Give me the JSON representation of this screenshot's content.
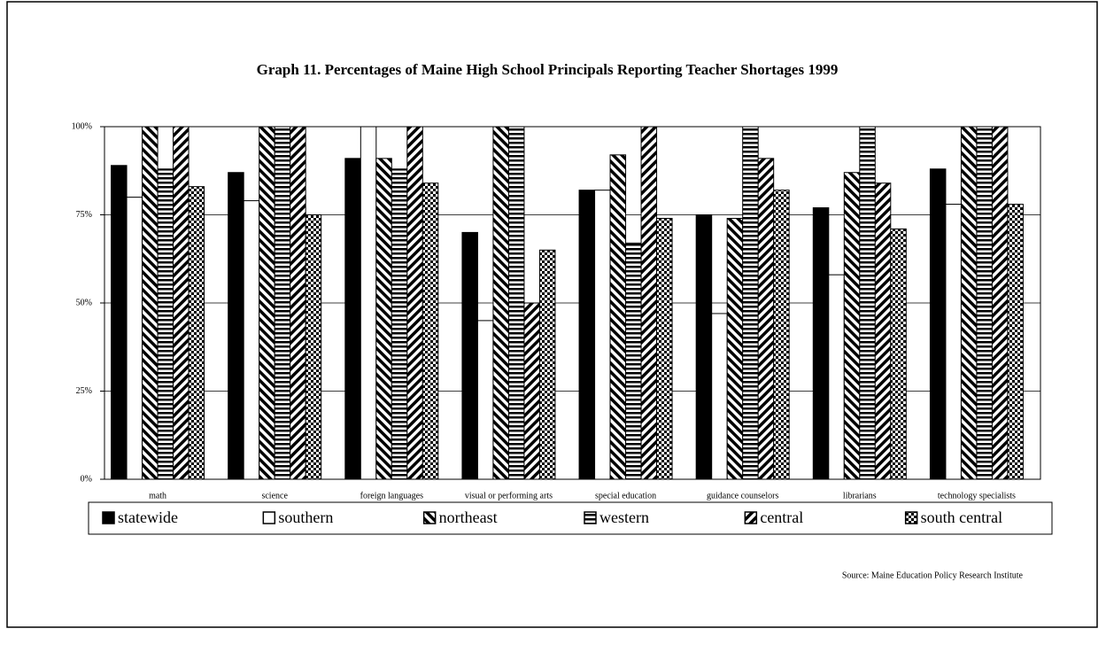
{
  "chart_data": {
    "type": "bar",
    "title": "Graph 11. Percentages of Maine High School Principals Reporting Teacher Shortages 1999",
    "source": "Source: Maine Education Policy Research Institute",
    "categories": [
      "math",
      "science",
      "foreign languages",
      "visual or performing arts",
      "special education",
      "guidance counselors",
      "librarians",
      "technology specialists"
    ],
    "series": [
      {
        "name": "statewide",
        "color": "#000000",
        "pattern": "solid",
        "values": [
          89,
          87,
          91,
          70,
          82,
          75,
          77,
          88
        ]
      },
      {
        "name": "southern",
        "color": "#ffffff",
        "pattern": "solid",
        "values": [
          80,
          79,
          100,
          45,
          82,
          47,
          58,
          78
        ]
      },
      {
        "name": "northeast",
        "color": "#000000",
        "pattern": "backslash",
        "values": [
          100,
          100,
          91,
          100,
          92,
          74,
          87,
          100
        ]
      },
      {
        "name": "western",
        "color": "#000000",
        "pattern": "horizontal",
        "values": [
          88,
          100,
          88,
          100,
          67,
          100,
          100,
          100
        ]
      },
      {
        "name": "central",
        "color": "#000000",
        "pattern": "slash",
        "values": [
          100,
          100,
          100,
          50,
          100,
          91,
          84,
          100
        ]
      },
      {
        "name": "south central",
        "color": "#000000",
        "pattern": "checker",
        "values": [
          83,
          75,
          84,
          65,
          74,
          82,
          71,
          78
        ]
      }
    ],
    "ylim": [
      0,
      100
    ],
    "yticks": [
      {
        "value": 0,
        "label": "0%"
      },
      {
        "value": 25,
        "label": "25%"
      },
      {
        "value": 50,
        "label": "50%"
      },
      {
        "value": 75,
        "label": "75%"
      },
      {
        "value": 100,
        "label": "100%"
      }
    ],
    "grid": true,
    "legend": "bottom"
  }
}
